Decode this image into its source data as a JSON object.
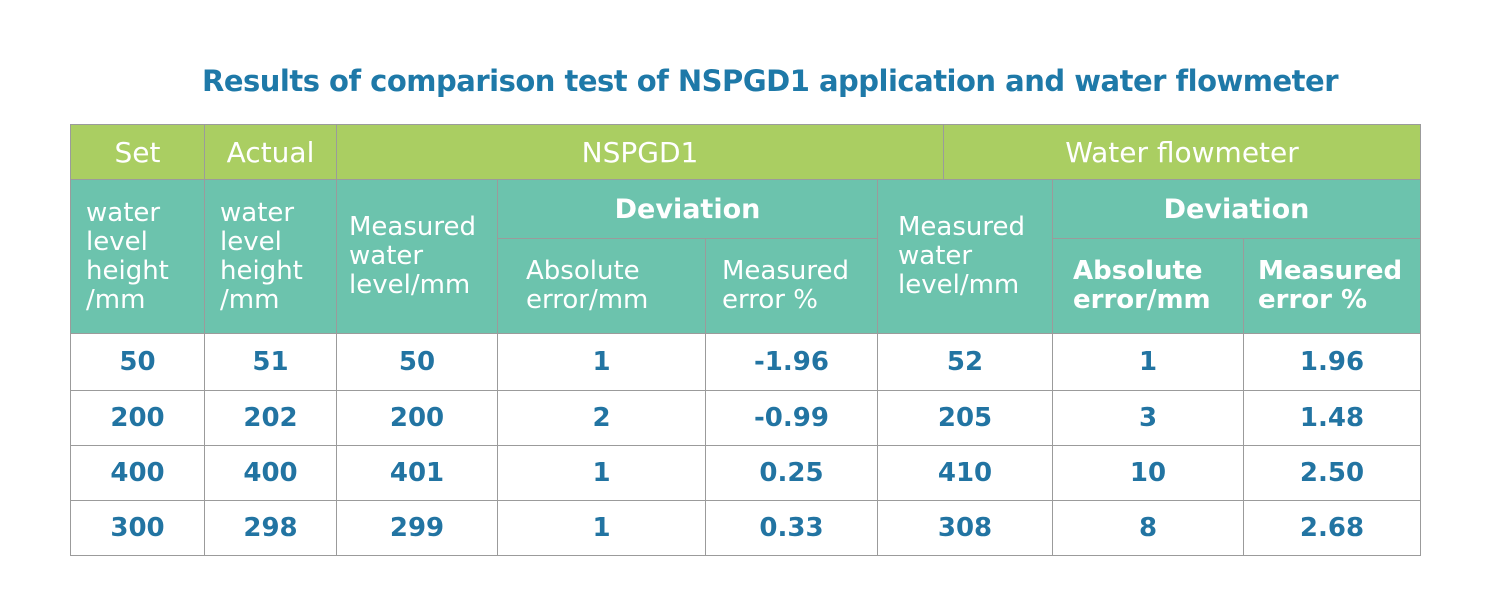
{
  "title": "Results of comparison test of NSPGD1 application and water flowmeter",
  "colors": {
    "header_green": "#aace62",
    "header_teal": "#6cc3ad",
    "title_blue": "#1e79a8",
    "value_blue": "#2274a2",
    "border_gray": "#9b9b9b"
  },
  "header": {
    "set": "Set",
    "actual": "Actual",
    "nspgd1": "NSPGD1",
    "water_flowmeter": "Water flowmeter",
    "set_unit": "water level height /mm",
    "actual_unit": "water level height /mm",
    "nspgd1_measured": "Measured water level/mm",
    "nspgd1_deviation": "Deviation",
    "nspgd1_absolute_error": "Absolute error/mm",
    "nspgd1_measured_error": "Measured error %",
    "wf_measured": "Measured water level/mm",
    "wf_deviation": "Deviation",
    "wf_absolute_error": "Absolute error/mm",
    "wf_measured_error": "Measured error %"
  },
  "rows": [
    [
      "50",
      "51",
      "50",
      "1",
      "-1.96",
      "52",
      "1",
      "1.96"
    ],
    [
      "200",
      "202",
      "200",
      "2",
      "-0.99",
      "205",
      "3",
      "1.48"
    ],
    [
      "400",
      "400",
      "401",
      "1",
      "0.25",
      "410",
      "10",
      "2.50"
    ],
    [
      "300",
      "298",
      "299",
      "1",
      "0.33",
      "308",
      "8",
      "2.68"
    ]
  ],
  "chart_data": {
    "type": "table",
    "title": "Results of comparison test of NSPGD1 application and water flowmeter",
    "column_groups": [
      "Set",
      "Actual",
      "NSPGD1",
      "Water flowmeter"
    ],
    "columns": [
      "Set water level height /mm",
      "Actual water level height /mm",
      "NSPGD1 Measured water level/mm",
      "NSPGD1 Deviation Absolute error/mm",
      "NSPGD1 Deviation Measured error %",
      "Water flowmeter Measured water level/mm",
      "Water flowmeter Deviation Absolute error/mm",
      "Water flowmeter Deviation Measured error %"
    ],
    "rows": [
      [
        50,
        51,
        50,
        1,
        -1.96,
        52,
        1,
        1.96
      ],
      [
        200,
        202,
        200,
        2,
        -0.99,
        205,
        3,
        1.48
      ],
      [
        400,
        400,
        401,
        1,
        0.25,
        410,
        10,
        2.5
      ],
      [
        300,
        298,
        299,
        1,
        0.33,
        308,
        8,
        2.68
      ]
    ]
  }
}
